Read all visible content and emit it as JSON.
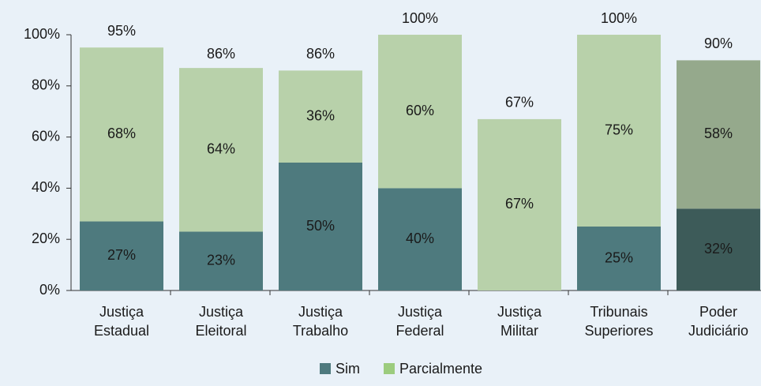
{
  "chart_data": {
    "type": "stacked_bar",
    "categories": [
      [
        "Justiça",
        "Estadual"
      ],
      [
        "Justiça",
        "Eleitoral"
      ],
      [
        "Justiça",
        "Trabalho"
      ],
      [
        "Justiça",
        "Federal"
      ],
      [
        "Justiça",
        "Militar"
      ],
      [
        "Tribunais",
        "Superiores"
      ],
      [
        "Poder",
        "Judiciário"
      ]
    ],
    "series": [
      {
        "name": "Sim",
        "color": "#4e7a7e",
        "colors": [
          "#4e7a7e",
          "#4e7a7e",
          "#4e7a7e",
          "#4e7a7e",
          "#4e7a7e",
          "#4e7a7e",
          "#3d5b59"
        ],
        "values": [
          27,
          23,
          50,
          40,
          0,
          25,
          32
        ],
        "value_labels": [
          "27%",
          "23%",
          "50%",
          "40%",
          null,
          "25%",
          "32%"
        ]
      },
      {
        "name": "Parcialmente",
        "color": "#9ccc7e",
        "colors": [
          "#b8d1aa",
          "#b8d1aa",
          "#b8d1aa",
          "#b8d1aa",
          "#b8d1aa",
          "#b8d1aa",
          "#95a98c"
        ],
        "values": [
          68,
          64,
          36,
          60,
          67,
          75,
          58
        ],
        "value_labels": [
          "68%",
          "64%",
          "36%",
          "60%",
          "67%",
          "75%",
          "58%"
        ]
      }
    ],
    "totals": [
      95,
      86,
      86,
      100,
      67,
      100,
      90
    ],
    "total_labels": [
      "95%",
      "86%",
      "86%",
      "100%",
      "67%",
      "100%",
      "90%"
    ],
    "ylim": [
      0,
      100
    ],
    "yticks": [
      {
        "value": 0,
        "label": "0%"
      },
      {
        "value": 20,
        "label": "20%"
      },
      {
        "value": 40,
        "label": "40%"
      },
      {
        "value": 60,
        "label": "60%"
      },
      {
        "value": 80,
        "label": "80%"
      },
      {
        "value": 100,
        "label": "100%"
      }
    ]
  }
}
